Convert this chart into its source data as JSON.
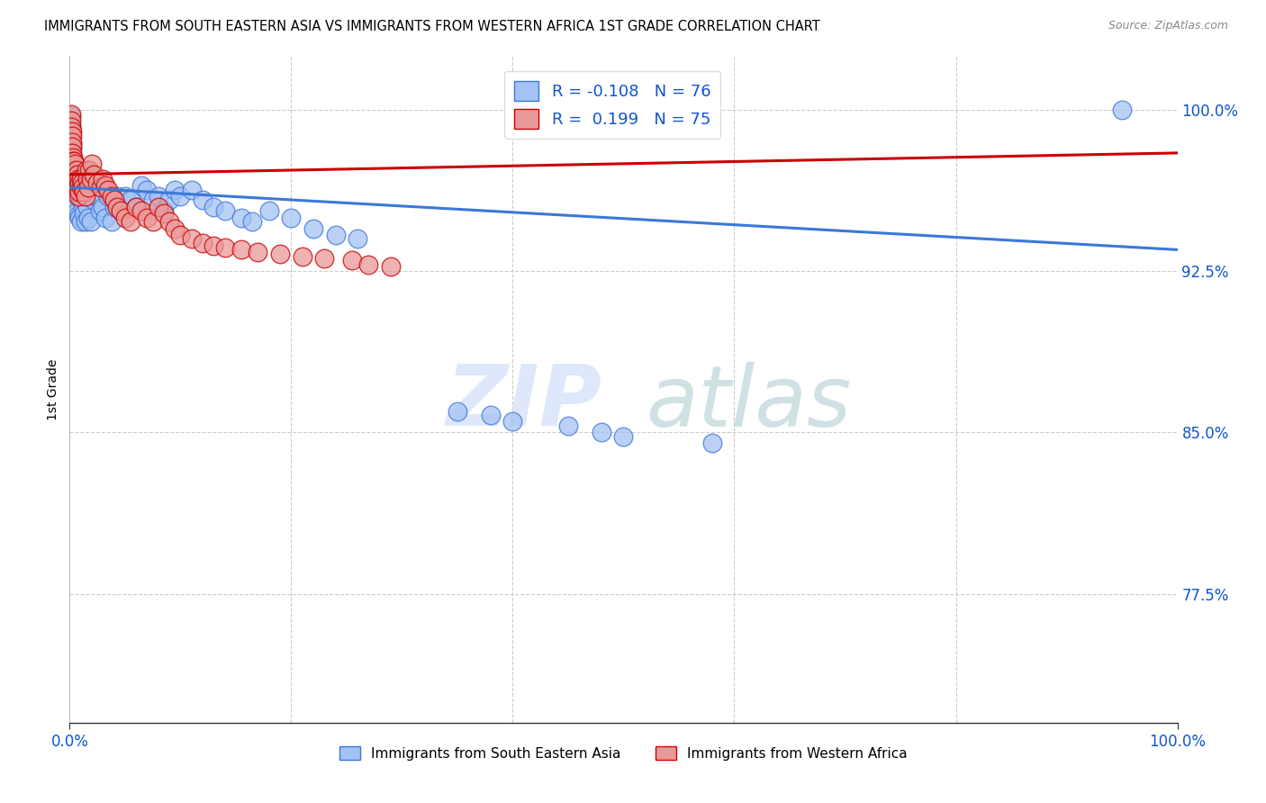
{
  "title": "IMMIGRANTS FROM SOUTH EASTERN ASIA VS IMMIGRANTS FROM WESTERN AFRICA 1ST GRADE CORRELATION CHART",
  "source": "Source: ZipAtlas.com",
  "ylabel": "1st Grade",
  "xlim": [
    0.0,
    1.0
  ],
  "ylim": [
    0.715,
    1.025
  ],
  "yticks": [
    0.775,
    0.85,
    0.925,
    1.0
  ],
  "ytick_labels": [
    "77.5%",
    "85.0%",
    "92.5%",
    "100.0%"
  ],
  "xtick_labels": [
    "0.0%",
    "100.0%"
  ],
  "xticks": [
    0.0,
    1.0
  ],
  "r_blue": -0.108,
  "n_blue": 76,
  "r_pink": 0.199,
  "n_pink": 75,
  "blue_color": "#a4c2f4",
  "pink_color": "#ea9999",
  "line_blue": "#3c78d8",
  "line_pink": "#cc0000",
  "watermark_zip": "ZIP",
  "watermark_atlas": "atlas",
  "blue_trend_x": [
    0.0,
    1.0
  ],
  "blue_trend_y": [
    0.964,
    0.935
  ],
  "pink_trend_x": [
    0.0,
    1.0
  ],
  "pink_trend_y": [
    0.97,
    0.98
  ],
  "blue_scatter_x": [
    0.001,
    0.001,
    0.001,
    0.002,
    0.002,
    0.002,
    0.002,
    0.003,
    0.003,
    0.003,
    0.004,
    0.004,
    0.004,
    0.005,
    0.005,
    0.005,
    0.006,
    0.006,
    0.007,
    0.007,
    0.008,
    0.008,
    0.009,
    0.009,
    0.01,
    0.01,
    0.011,
    0.012,
    0.013,
    0.014,
    0.015,
    0.016,
    0.017,
    0.018,
    0.019,
    0.02,
    0.022,
    0.025,
    0.027,
    0.03,
    0.032,
    0.035,
    0.038,
    0.04,
    0.043,
    0.046,
    0.05,
    0.055,
    0.06,
    0.065,
    0.07,
    0.075,
    0.08,
    0.085,
    0.09,
    0.095,
    0.1,
    0.11,
    0.12,
    0.13,
    0.14,
    0.155,
    0.165,
    0.18,
    0.2,
    0.22,
    0.24,
    0.26,
    0.35,
    0.38,
    0.4,
    0.45,
    0.48,
    0.5,
    0.58,
    0.95
  ],
  "blue_scatter_y": [
    0.997,
    0.993,
    0.988,
    0.984,
    0.982,
    0.978,
    0.975,
    0.973,
    0.97,
    0.968,
    0.966,
    0.964,
    0.962,
    0.96,
    0.958,
    0.956,
    0.97,
    0.955,
    0.965,
    0.953,
    0.963,
    0.951,
    0.96,
    0.95,
    0.958,
    0.948,
    0.958,
    0.955,
    0.952,
    0.948,
    0.96,
    0.955,
    0.95,
    0.96,
    0.948,
    0.965,
    0.958,
    0.96,
    0.953,
    0.955,
    0.95,
    0.96,
    0.948,
    0.955,
    0.96,
    0.953,
    0.96,
    0.958,
    0.955,
    0.965,
    0.963,
    0.958,
    0.96,
    0.953,
    0.958,
    0.963,
    0.96,
    0.963,
    0.958,
    0.955,
    0.953,
    0.95,
    0.948,
    0.953,
    0.95,
    0.945,
    0.942,
    0.94,
    0.86,
    0.858,
    0.855,
    0.853,
    0.85,
    0.848,
    0.845,
    1.0
  ],
  "pink_scatter_x": [
    0.001,
    0.001,
    0.001,
    0.002,
    0.002,
    0.002,
    0.002,
    0.002,
    0.003,
    0.003,
    0.003,
    0.003,
    0.004,
    0.004,
    0.004,
    0.004,
    0.005,
    0.005,
    0.005,
    0.006,
    0.006,
    0.006,
    0.007,
    0.007,
    0.007,
    0.008,
    0.008,
    0.008,
    0.009,
    0.009,
    0.01,
    0.01,
    0.011,
    0.012,
    0.013,
    0.014,
    0.015,
    0.016,
    0.017,
    0.018,
    0.019,
    0.02,
    0.022,
    0.025,
    0.028,
    0.03,
    0.032,
    0.035,
    0.038,
    0.04,
    0.043,
    0.046,
    0.05,
    0.055,
    0.06,
    0.065,
    0.07,
    0.075,
    0.08,
    0.085,
    0.09,
    0.095,
    0.1,
    0.11,
    0.12,
    0.13,
    0.14,
    0.155,
    0.17,
    0.19,
    0.21,
    0.23,
    0.255,
    0.27,
    0.29
  ],
  "pink_scatter_y": [
    0.998,
    0.995,
    0.992,
    0.99,
    0.988,
    0.985,
    0.983,
    0.98,
    0.978,
    0.976,
    0.974,
    0.972,
    0.97,
    0.968,
    0.976,
    0.972,
    0.975,
    0.97,
    0.966,
    0.972,
    0.968,
    0.964,
    0.97,
    0.966,
    0.962,
    0.968,
    0.964,
    0.96,
    0.966,
    0.962,
    0.968,
    0.964,
    0.966,
    0.964,
    0.962,
    0.96,
    0.972,
    0.968,
    0.964,
    0.972,
    0.968,
    0.975,
    0.97,
    0.966,
    0.964,
    0.968,
    0.965,
    0.963,
    0.96,
    0.958,
    0.955,
    0.953,
    0.95,
    0.948,
    0.955,
    0.953,
    0.95,
    0.948,
    0.955,
    0.952,
    0.948,
    0.945,
    0.942,
    0.94,
    0.938,
    0.937,
    0.936,
    0.935,
    0.934,
    0.933,
    0.932,
    0.931,
    0.93,
    0.928,
    0.927
  ]
}
